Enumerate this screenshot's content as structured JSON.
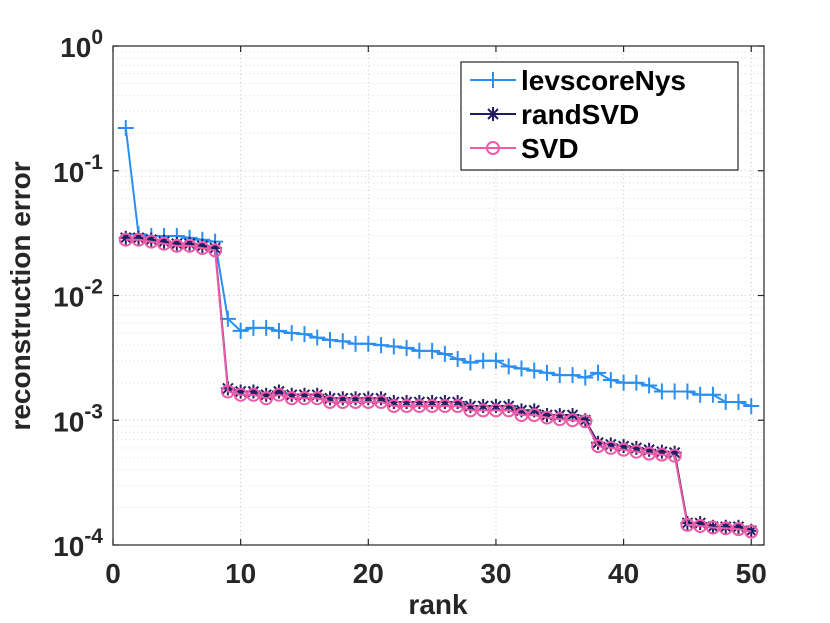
{
  "chart_data": {
    "type": "line",
    "yscale": "log",
    "xlabel": "rank",
    "ylabel": "reconstruction error",
    "xlim": [
      0,
      51
    ],
    "ylim": [
      0.0001,
      1
    ],
    "xticks": [
      0,
      10,
      20,
      30,
      40,
      50
    ],
    "yticks": [
      {
        "base": "10",
        "exp": "0",
        "value": 1
      },
      {
        "base": "10",
        "exp": "-1",
        "value": 0.1
      },
      {
        "base": "10",
        "exp": "-2",
        "value": 0.01
      },
      {
        "base": "10",
        "exp": "-3",
        "value": 0.001
      },
      {
        "base": "10",
        "exp": "-4",
        "value": 0.0001
      }
    ],
    "grid": true,
    "legend_position": "top-right",
    "x": [
      1,
      2,
      3,
      4,
      5,
      6,
      7,
      8,
      9,
      10,
      11,
      12,
      13,
      14,
      15,
      16,
      17,
      18,
      19,
      20,
      21,
      22,
      23,
      24,
      25,
      26,
      27,
      28,
      29,
      30,
      31,
      32,
      33,
      34,
      35,
      36,
      37,
      38,
      39,
      40,
      41,
      42,
      43,
      44,
      45,
      46,
      47,
      48,
      49,
      50
    ],
    "series": [
      {
        "name": "levscoreNys",
        "color": "#2b8ff2",
        "marker": "plus",
        "values": [
          0.22,
          0.031,
          0.03,
          0.03,
          0.03,
          0.029,
          0.028,
          0.027,
          0.0065,
          0.0052,
          0.0055,
          0.0055,
          0.0052,
          0.005,
          0.0049,
          0.0046,
          0.0044,
          0.0043,
          0.0041,
          0.0041,
          0.004,
          0.0039,
          0.0038,
          0.0036,
          0.0036,
          0.0034,
          0.0031,
          0.0029,
          0.003,
          0.003,
          0.0027,
          0.0026,
          0.0025,
          0.0024,
          0.0023,
          0.0023,
          0.0022,
          0.0024,
          0.0021,
          0.002,
          0.002,
          0.0019,
          0.0017,
          0.0017,
          0.0017,
          0.0016,
          0.0016,
          0.0014,
          0.0014,
          0.0013
        ]
      },
      {
        "name": "randSVD",
        "color": "#1f1d63",
        "marker": "star",
        "values": [
          0.029,
          0.029,
          0.028,
          0.027,
          0.026,
          0.026,
          0.025,
          0.024,
          0.0018,
          0.0017,
          0.0017,
          0.0016,
          0.0017,
          0.0016,
          0.0016,
          0.0016,
          0.0015,
          0.0015,
          0.0015,
          0.0015,
          0.0015,
          0.0014,
          0.0014,
          0.0014,
          0.0014,
          0.0014,
          0.0014,
          0.0013,
          0.0013,
          0.0013,
          0.0013,
          0.0012,
          0.0012,
          0.0011,
          0.0011,
          0.0011,
          0.001,
          0.00066,
          0.00064,
          0.00062,
          0.0006,
          0.00058,
          0.00056,
          0.00055,
          0.00015,
          0.00015,
          0.00014,
          0.00014,
          0.00014,
          0.00013
        ]
      },
      {
        "name": "SVD",
        "color": "#ee5ca8",
        "marker": "circle",
        "values": [
          0.028,
          0.028,
          0.027,
          0.026,
          0.025,
          0.025,
          0.024,
          0.023,
          0.0017,
          0.0016,
          0.0016,
          0.0015,
          0.0016,
          0.0015,
          0.0015,
          0.0015,
          0.0014,
          0.0014,
          0.0014,
          0.0014,
          0.0014,
          0.0013,
          0.0013,
          0.0013,
          0.0013,
          0.0013,
          0.0013,
          0.0012,
          0.0012,
          0.0012,
          0.0012,
          0.0011,
          0.0011,
          0.00105,
          0.00102,
          0.001,
          0.00098,
          0.00062,
          0.0006,
          0.00058,
          0.00056,
          0.00054,
          0.00053,
          0.00052,
          0.000145,
          0.000142,
          0.000138,
          0.000136,
          0.000134,
          0.000128
        ]
      }
    ]
  }
}
